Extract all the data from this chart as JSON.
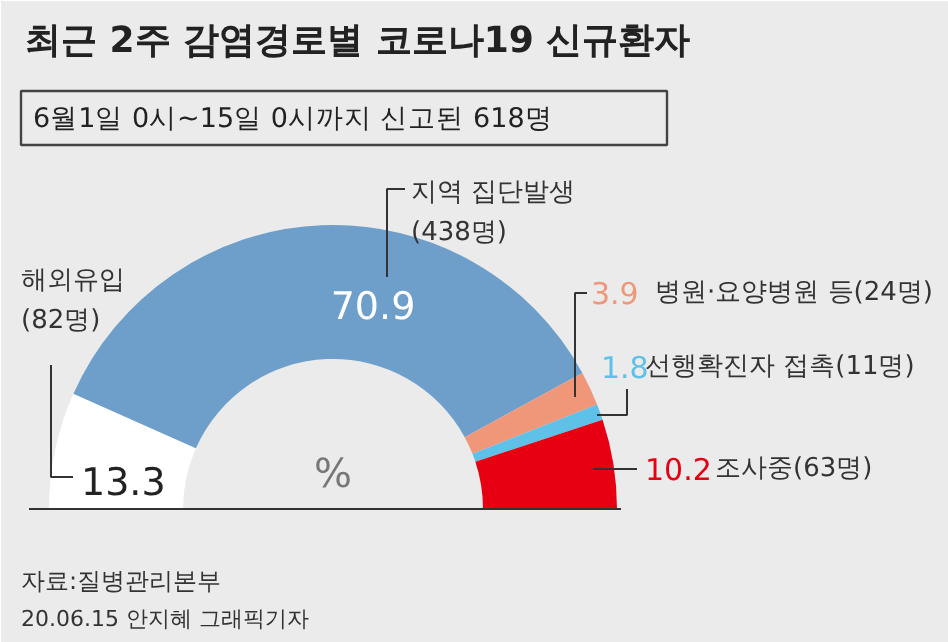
{
  "chart_data": {
    "type": "donut",
    "title": "최근 2주 감염경로별 코로나19 신규환자",
    "subtitle": "6월1일 0시~15일 0시까지 신고된 618명",
    "categories": [
      "해외유입\n(82명)",
      "지역 집단발생\n(438명)",
      "병원·요양병원 등(24명)",
      "선행확진자 접촉(11명)",
      "조사중(63명)"
    ],
    "values": [
      13.3,
      70.9,
      3.9,
      1.8,
      10.2
    ],
    "colors": [
      "#ffffff",
      "#6e9fca",
      "#f0977a",
      "#5fc0e8",
      "#e60012"
    ],
    "data_labels": true,
    "annotations": [
      "%",
      "자료:질병관리본부",
      "20.06.15 안지혜 그래픽기자"
    ]
  }
}
